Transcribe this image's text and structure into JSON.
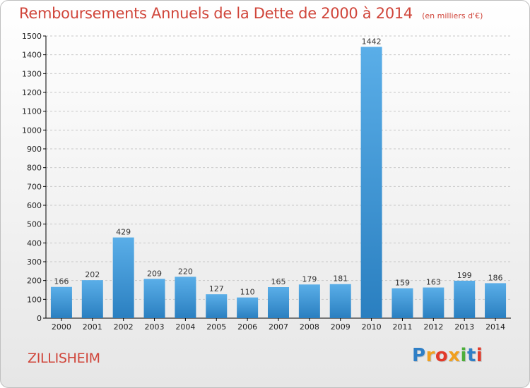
{
  "chart_data": {
    "type": "bar",
    "title": "Remboursements Annuels de la Dette de 2000 à 2014",
    "unit_note": "(en milliers d'€)",
    "categories": [
      "2000",
      "2001",
      "2002",
      "2003",
      "2004",
      "2005",
      "2006",
      "2007",
      "2008",
      "2009",
      "2010",
      "2011",
      "2012",
      "2013",
      "2014"
    ],
    "values": [
      166,
      202,
      429,
      209,
      220,
      127,
      110,
      165,
      179,
      181,
      1442,
      159,
      163,
      199,
      186
    ],
    "ylim": [
      0,
      1500
    ],
    "yticks": [
      0,
      100,
      200,
      300,
      400,
      500,
      600,
      700,
      800,
      900,
      1000,
      1100,
      1200,
      1300,
      1400,
      1500
    ],
    "grid": "horizontal-dashed",
    "bar_color_top": "#5aaee8",
    "bar_color_bottom": "#2a7fc0"
  },
  "location": "ZILLISHEIM",
  "brand": {
    "text": "Proxiti",
    "colors": [
      "#2f7fc6",
      "#f0a020",
      "#e23a2a",
      "#f0a020",
      "#4caf3a",
      "#2f7fc6",
      "#e23a2a"
    ]
  },
  "colors": {
    "title": "#d0453a",
    "axis": "#000000",
    "grid": "#c8c8c8"
  }
}
